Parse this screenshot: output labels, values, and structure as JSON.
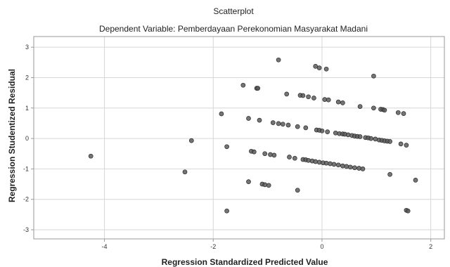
{
  "chart_data": {
    "type": "scatter",
    "title": "Scatterplot",
    "subtitle": "Dependent Variable: Pemberdayaan Perekonomian Masyarakat Madani",
    "xlabel": "Regression Standardized Predicted Value",
    "ylabel": "Regression Studentized Residual",
    "xlim": [
      -5.3,
      2.25
    ],
    "ylim": [
      -3.3,
      3.35
    ],
    "xticks": [
      -4,
      -2,
      0,
      2
    ],
    "xtick_labels": [
      "-4",
      "-2",
      "0",
      "2"
    ],
    "yticks": [
      -3,
      -2,
      -1,
      0,
      1,
      2,
      3
    ],
    "ytick_labels": [
      "-3",
      "-2",
      "-1",
      "0",
      "1",
      "2",
      "3"
    ],
    "grid": true,
    "legend": "none",
    "marker_color": "#555555",
    "series": [
      {
        "points": [
          [
            -4.25,
            -0.58
          ],
          [
            -2.4,
            -0.07
          ],
          [
            -2.52,
            -1.1
          ],
          [
            -1.85,
            0.81
          ],
          [
            -1.75,
            -0.27
          ],
          [
            -1.75,
            -2.38
          ],
          [
            -1.45,
            1.75
          ],
          [
            -1.2,
            1.65
          ],
          [
            -1.18,
            1.65
          ],
          [
            -0.8,
            2.58
          ],
          [
            -0.12,
            2.37
          ],
          [
            -0.05,
            2.32
          ],
          [
            0.08,
            2.28
          ],
          [
            0.95,
            2.05
          ],
          [
            -0.65,
            1.46
          ],
          [
            -0.4,
            1.42
          ],
          [
            -0.35,
            1.41
          ],
          [
            -0.25,
            1.37
          ],
          [
            -0.15,
            1.33
          ],
          [
            0.05,
            1.28
          ],
          [
            0.12,
            1.27
          ],
          [
            0.3,
            1.2
          ],
          [
            0.38,
            1.17
          ],
          [
            0.7,
            1.05
          ],
          [
            0.95,
            1.0
          ],
          [
            1.08,
            0.96
          ],
          [
            1.12,
            0.95
          ],
          [
            1.15,
            0.93
          ],
          [
            1.4,
            0.85
          ],
          [
            1.5,
            0.82
          ],
          [
            -1.35,
            0.66
          ],
          [
            -1.15,
            0.6
          ],
          [
            -0.9,
            0.52
          ],
          [
            -0.8,
            0.49
          ],
          [
            -0.72,
            0.47
          ],
          [
            -0.62,
            0.44
          ],
          [
            -0.45,
            0.39
          ],
          [
            -0.3,
            0.35
          ],
          [
            -0.1,
            0.28
          ],
          [
            -0.05,
            0.27
          ],
          [
            0.0,
            0.25
          ],
          [
            0.1,
            0.22
          ],
          [
            0.25,
            0.18
          ],
          [
            0.32,
            0.16
          ],
          [
            0.38,
            0.15
          ],
          [
            0.42,
            0.14
          ],
          [
            0.48,
            0.12
          ],
          [
            0.55,
            0.1
          ],
          [
            0.6,
            0.08
          ],
          [
            0.65,
            0.07
          ],
          [
            0.7,
            0.06
          ],
          [
            0.8,
            0.03
          ],
          [
            0.85,
            0.02
          ],
          [
            0.9,
            0.0
          ],
          [
            0.98,
            -0.02
          ],
          [
            1.05,
            -0.05
          ],
          [
            1.1,
            -0.06
          ],
          [
            1.15,
            -0.08
          ],
          [
            1.2,
            -0.09
          ],
          [
            1.25,
            -0.1
          ],
          [
            1.45,
            -0.18
          ],
          [
            1.55,
            -0.22
          ],
          [
            -1.3,
            -0.42
          ],
          [
            -1.25,
            -0.44
          ],
          [
            -1.05,
            -0.5
          ],
          [
            -0.95,
            -0.53
          ],
          [
            -0.88,
            -0.55
          ],
          [
            -0.6,
            -0.61
          ],
          [
            -0.5,
            -0.65
          ],
          [
            -0.35,
            -0.69
          ],
          [
            -0.3,
            -0.7
          ],
          [
            -0.25,
            -0.72
          ],
          [
            -0.18,
            -0.74
          ],
          [
            -0.12,
            -0.76
          ],
          [
            -0.05,
            -0.78
          ],
          [
            0.02,
            -0.8
          ],
          [
            0.08,
            -0.81
          ],
          [
            0.15,
            -0.83
          ],
          [
            0.22,
            -0.85
          ],
          [
            0.3,
            -0.87
          ],
          [
            0.38,
            -0.9
          ],
          [
            0.45,
            -0.92
          ],
          [
            0.52,
            -0.94
          ],
          [
            0.6,
            -0.96
          ],
          [
            0.68,
            -0.98
          ],
          [
            0.75,
            -1.0
          ],
          [
            1.25,
            -1.18
          ],
          [
            1.72,
            -1.37
          ],
          [
            -1.35,
            -1.42
          ],
          [
            -1.1,
            -1.5
          ],
          [
            -1.05,
            -1.52
          ],
          [
            -0.98,
            -1.54
          ],
          [
            -0.45,
            -1.7
          ],
          [
            1.55,
            -2.36
          ],
          [
            1.58,
            -2.38
          ]
        ]
      }
    ]
  }
}
